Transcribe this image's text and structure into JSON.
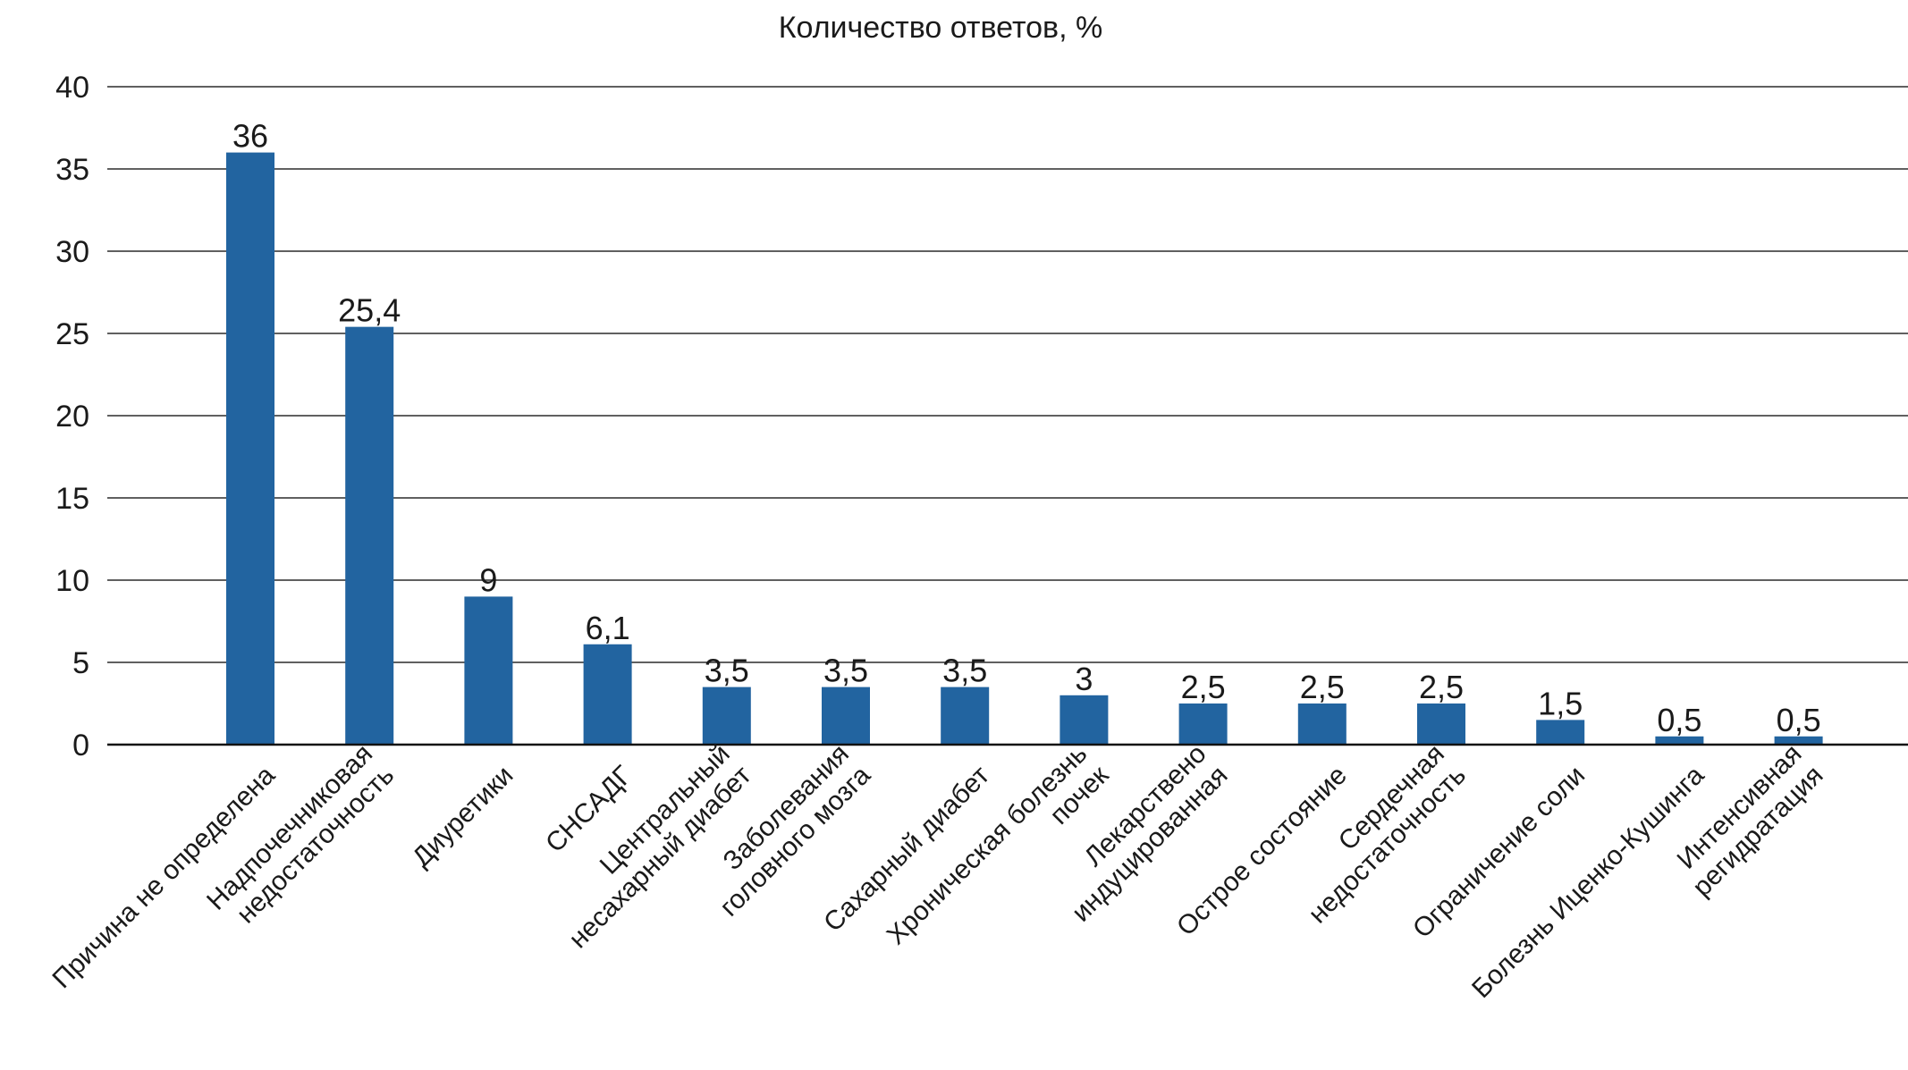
{
  "chart_data": {
    "type": "bar",
    "title": "Количество ответов, %",
    "xlabel": "",
    "ylabel": "",
    "ylim": [
      0,
      40
    ],
    "yticks": [
      0,
      5,
      10,
      15,
      20,
      25,
      30,
      35,
      40
    ],
    "grid": true,
    "legend": "none",
    "bar_color": "#2264a0",
    "categories": [
      [
        "Причина не определена"
      ],
      [
        "Надпочечниковая",
        "недостаточность"
      ],
      [
        "Диуретики"
      ],
      [
        "СНСАДГ"
      ],
      [
        "Центральный",
        "несахарный диабет"
      ],
      [
        "Заболевания",
        "головного мозга"
      ],
      [
        "Сахарный диабет"
      ],
      [
        "Хроническая болезнь",
        "почек"
      ],
      [
        "Лекарствено",
        "индуцированная"
      ],
      [
        "Острое состояние"
      ],
      [
        "Сердечная",
        "недостаточность"
      ],
      [
        "Ограничение соли"
      ],
      [
        "Болезнь Иценко-Кушинга"
      ],
      [
        "Интенсивная",
        "регидратация"
      ]
    ],
    "values": [
      36,
      25.4,
      9,
      6.1,
      3.5,
      3.5,
      3.5,
      3,
      2.5,
      2.5,
      2.5,
      1.5,
      0.5,
      0.5
    ],
    "value_labels": [
      "36",
      "25,4",
      "9",
      "6,1",
      "3,5",
      "3,5",
      "3,5",
      "3",
      "2,5",
      "2,5",
      "2,5",
      "1,5",
      "0,5",
      "0,5"
    ]
  }
}
